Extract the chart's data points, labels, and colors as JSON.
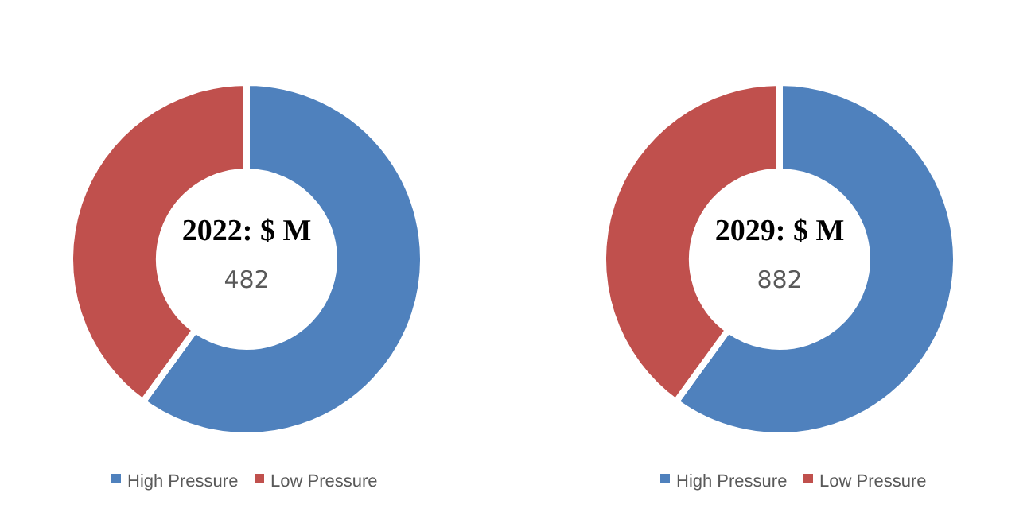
{
  "chart_data": [
    {
      "type": "donut",
      "title": "2022: $ M",
      "annotations": [
        "482"
      ],
      "categories": [
        "High Pressure",
        "Low Pressure"
      ],
      "values": [
        60,
        40
      ],
      "colors": [
        "#4f81bd",
        "#c0504d"
      ],
      "legend": "bottom"
    },
    {
      "type": "donut",
      "title": "2029: $ M",
      "annotations": [
        "882"
      ],
      "categories": [
        "High Pressure",
        "Low Pressure"
      ],
      "values": [
        60,
        40
      ],
      "colors": [
        "#4f81bd",
        "#c0504d"
      ],
      "legend": "bottom"
    }
  ]
}
